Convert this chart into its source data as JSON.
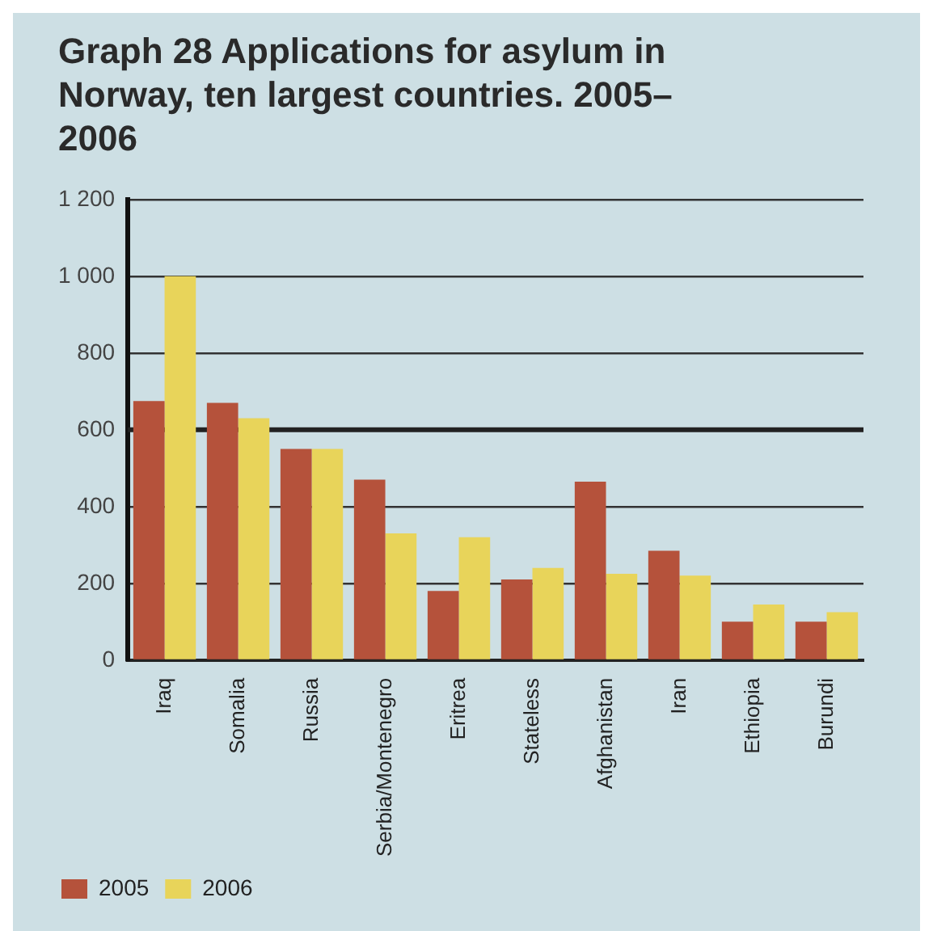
{
  "chart_data": {
    "type": "bar",
    "title": "Graph 28 Applications for asylum in Norway, ten largest countries. 2005–2006",
    "categories": [
      "Iraq",
      "Somalia",
      "Russia",
      "Serbia/Montenegro",
      "Eritrea",
      "Stateless",
      "Afghanistan",
      "Iran",
      "Ethiopia",
      "Burundi"
    ],
    "series": [
      {
        "name": "2005",
        "color": "#b5523b",
        "values": [
          675,
          670,
          550,
          470,
          180,
          210,
          465,
          285,
          100,
          100
        ]
      },
      {
        "name": "2006",
        "color": "#e8d45a",
        "values": [
          1000,
          630,
          550,
          330,
          320,
          240,
          225,
          220,
          145,
          125
        ]
      }
    ],
    "ylim": [
      0,
      1200
    ],
    "yticks": [
      0,
      200,
      400,
      600,
      800,
      {
        "value": 1000,
        "label": "1 000"
      },
      {
        "value": 1200,
        "label": "1 200"
      }
    ],
    "ref_lines": [
      {
        "axis": "y",
        "value": 600,
        "color": "#222222"
      }
    ],
    "grid": "y",
    "legend": "bottom left"
  }
}
